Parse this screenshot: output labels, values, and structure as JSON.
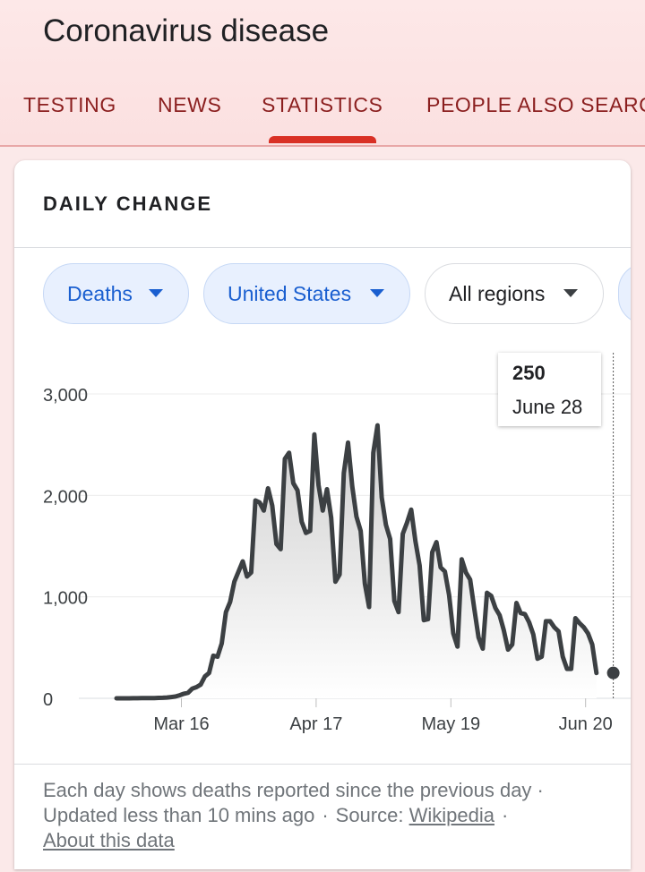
{
  "header": {
    "title": "Coronavirus disease",
    "tabs": [
      {
        "label": "TESTING"
      },
      {
        "label": "NEWS"
      },
      {
        "label": "STATISTICS"
      },
      {
        "label": "PEOPLE ALSO SEARC"
      }
    ]
  },
  "card": {
    "title": "DAILY CHANGE",
    "filters": [
      {
        "label": "Deaths"
      },
      {
        "label": "United States"
      },
      {
        "label": "All regions"
      }
    ],
    "tooltip": {
      "value": "250",
      "date": "June 28"
    },
    "footer": {
      "line1": "Each day shows deaths reported since the previous day ·",
      "updated": "Updated less than 10 mins ago",
      "source_label": "Source:",
      "source_link": "Wikipedia",
      "about_link": "About this data"
    }
  },
  "colors": {
    "accent": "#d93025",
    "chip_blue": "#1a5fd0",
    "line": "#3c4043"
  },
  "chart_data": {
    "type": "area",
    "title": "",
    "xlabel": "",
    "ylabel": "",
    "ylim": [
      0,
      3000
    ],
    "y_ticks": [
      "0",
      "1,000",
      "2,000",
      "3,000"
    ],
    "x_ticks": [
      {
        "label": "Mar 16",
        "day": 15
      },
      {
        "label": "Apr 17",
        "day": 47
      },
      {
        "label": "May 19",
        "day": 79
      },
      {
        "label": "Jun 20",
        "day": 111
      }
    ],
    "grid": true,
    "series": [
      {
        "values": [
          0,
          0,
          0,
          0,
          1,
          1,
          2,
          2,
          3,
          3,
          4,
          5,
          8,
          12,
          18,
          30,
          45,
          55,
          95,
          110,
          135,
          215,
          250,
          420,
          410,
          540,
          850,
          950,
          1150,
          1250,
          1350,
          1200,
          1240,
          1950,
          1930,
          1850,
          2070,
          1900,
          1520,
          1470,
          2360,
          2420,
          2120,
          2050,
          1740,
          1630,
          1650,
          2600,
          2100,
          1850,
          2060,
          1780,
          1150,
          1220,
          2220,
          2520,
          2090,
          1790,
          1650,
          1130,
          900,
          2420,
          2690,
          1980,
          1710,
          1570,
          960,
          850,
          1620,
          1730,
          1860,
          1550,
          1310,
          770,
          780,
          1440,
          1540,
          1290,
          1250,
          1020,
          640,
          510,
          1370,
          1240,
          1170,
          880,
          600,
          490,
          1040,
          1010,
          890,
          820,
          670,
          480,
          530,
          940,
          840,
          830,
          750,
          630,
          390,
          410,
          760,
          760,
          700,
          660,
          410,
          290,
          290,
          790,
          740,
          700,
          640,
          530,
          250
        ]
      }
    ],
    "highlight": {
      "day": 118,
      "value": 250,
      "label": "June 28"
    }
  }
}
